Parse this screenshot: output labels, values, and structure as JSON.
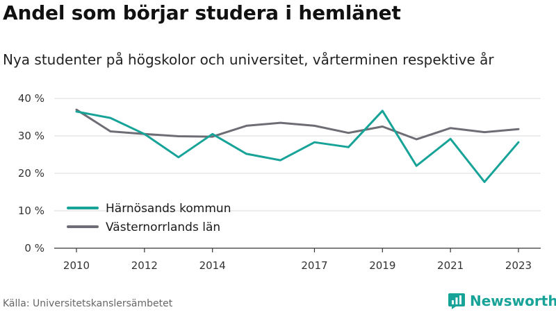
{
  "title": "Andel som börjar studera i hemlänet",
  "subtitle": "Nya studenter på högskolor och universitet, vårterminen respektive år",
  "source": "Källa: Universitetskanslersämbetet",
  "brand": {
    "name": "Newsworthy",
    "icon": "newsworthy-logo-icon",
    "color": "#17a398"
  },
  "chart_data": {
    "type": "line",
    "title": "Andel som börjar studera i hemlänet",
    "subtitle": "Nya studenter på högskolor och universitet, vårterminen respektive år",
    "x": [
      2010,
      2011,
      2012,
      2013,
      2014,
      2015,
      2016,
      2017,
      2018,
      2019,
      2020,
      2021,
      2022,
      2023
    ],
    "xticks": [
      2010,
      2012,
      2014,
      2017,
      2019,
      2021,
      2023
    ],
    "yticks": [
      0,
      10,
      20,
      30,
      40
    ],
    "ytick_labels": [
      "0 %",
      "10 %",
      "20 %",
      "30 %",
      "40 %"
    ],
    "ylim": [
      0,
      40
    ],
    "grid": true,
    "legend_position": "bottom-left",
    "series": [
      {
        "name": "Härnösands kommun",
        "color": "#17a398",
        "values": [
          36.5,
          34.8,
          30.5,
          24.3,
          30.5,
          25.2,
          23.5,
          28.3,
          27.0,
          36.7,
          22.0,
          29.2,
          17.7,
          28.3
        ]
      },
      {
        "name": "Västernorrlands län",
        "color": "#6d6d75",
        "values": [
          37.0,
          31.2,
          30.5,
          29.9,
          29.8,
          32.7,
          33.5,
          32.7,
          30.8,
          32.5,
          29.1,
          32.1,
          31.0,
          31.8
        ]
      }
    ]
  }
}
